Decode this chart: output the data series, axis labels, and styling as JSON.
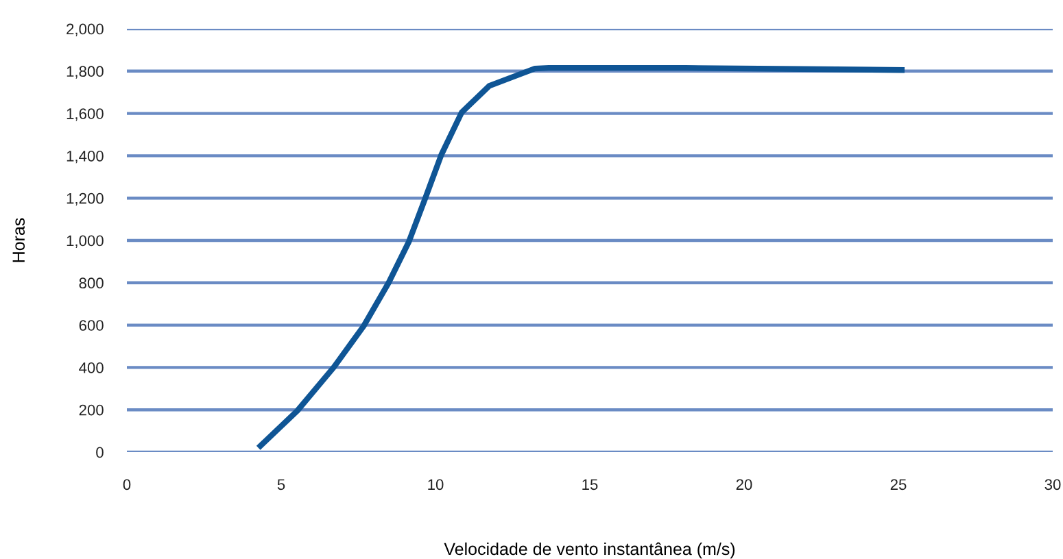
{
  "chart_data": {
    "type": "line",
    "xlabel": "Velocidade de vento instantânea (m/s)",
    "ylabel": "Horas",
    "series": [
      {
        "color": "#0f5595",
        "x": [
          4.26,
          5.52,
          6.7,
          7.67,
          8.48,
          9.14,
          9.67,
          10.19,
          10.85,
          11.74,
          13.22,
          13.67,
          18.1,
          21.8,
          25.2
        ],
        "values": [
          20,
          195,
          400,
          595,
          800,
          995,
          1200,
          1405,
          1605,
          1730,
          1812,
          1815,
          1815,
          1810,
          1805
        ]
      }
    ],
    "xlim": [
      0,
      30
    ],
    "xticks": [
      0,
      5,
      10,
      15,
      20,
      25,
      30
    ],
    "ylim": [
      0,
      2000
    ],
    "yticks": [
      {
        "value": 0,
        "label": "0"
      },
      {
        "value": 200,
        "label": "200"
      },
      {
        "value": 400,
        "label": "400"
      },
      {
        "value": 600,
        "label": "600"
      },
      {
        "value": 800,
        "label": "800"
      },
      {
        "value": 1000,
        "label": "1,000"
      },
      {
        "value": 1200,
        "label": "1,200"
      },
      {
        "value": 1400,
        "label": "1,400"
      },
      {
        "value": 1600,
        "label": "1,600"
      },
      {
        "value": 1800,
        "label": "1,800"
      },
      {
        "value": 2000,
        "label": "2,000"
      }
    ],
    "grid": "y",
    "marker": "none",
    "line_style": "solid"
  }
}
